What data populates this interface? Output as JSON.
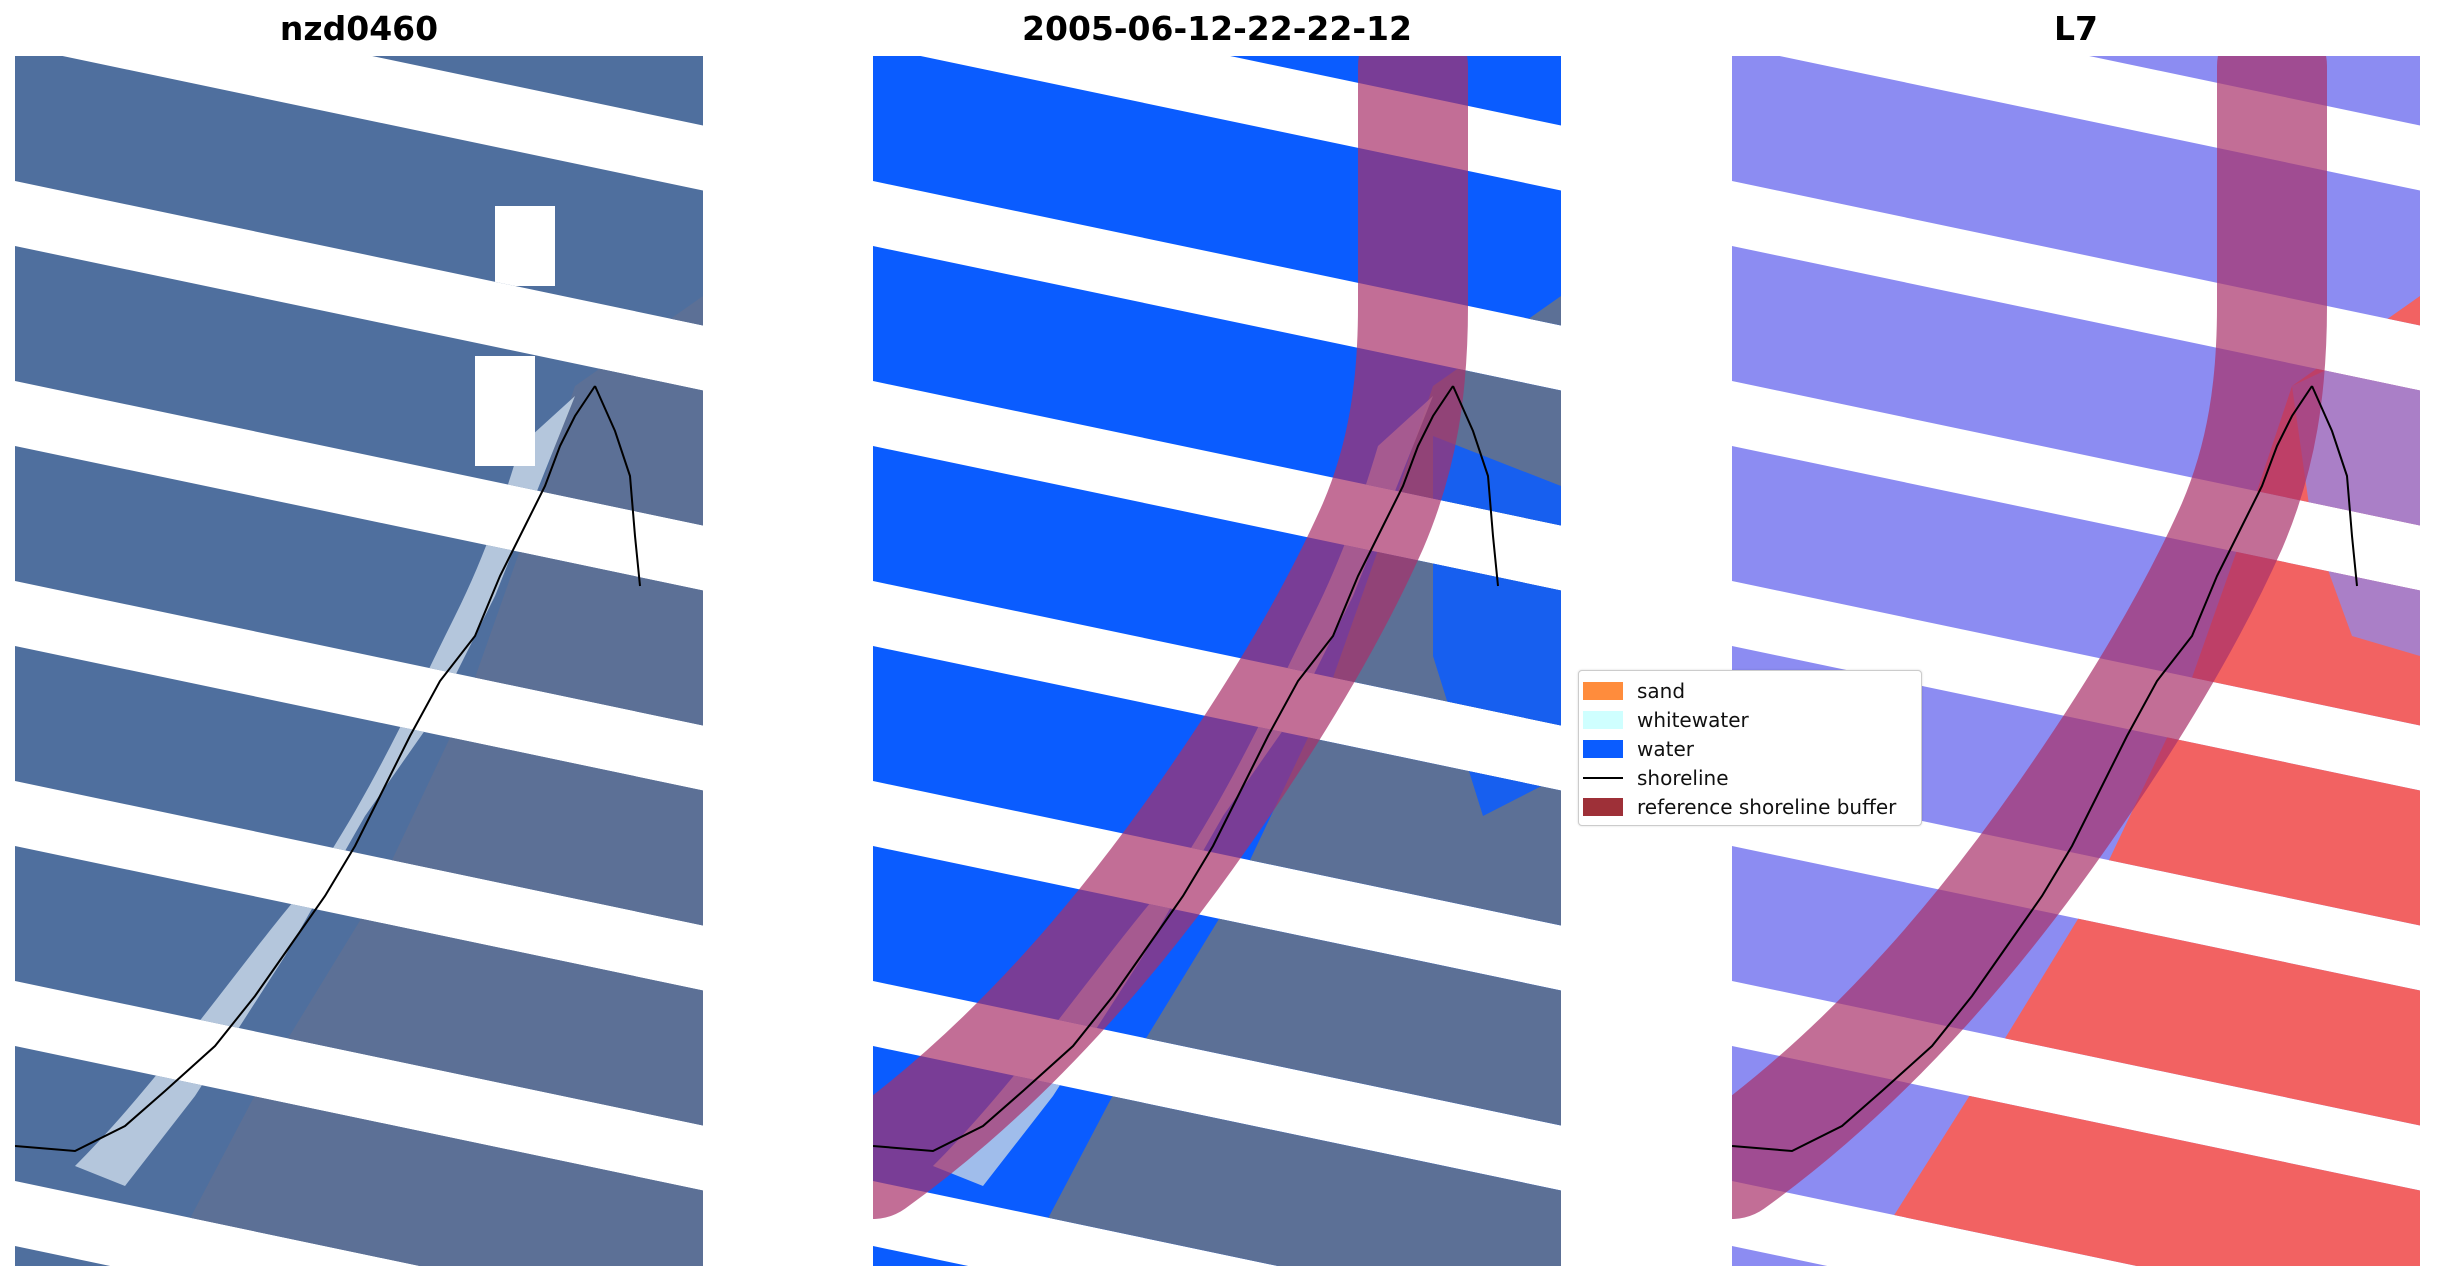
{
  "panels": [
    {
      "title": "nzd0460"
    },
    {
      "title": "2005-06-12-22-22-12"
    },
    {
      "title": "L7"
    }
  ],
  "legend": {
    "items": [
      {
        "label": "sand",
        "kind": "patch",
        "color": "#ff8c3c"
      },
      {
        "label": "whitewater",
        "kind": "patch",
        "color": "#cfffff"
      },
      {
        "label": "water",
        "kind": "patch",
        "color": "#0a5cff"
      },
      {
        "label": "shoreline",
        "kind": "line",
        "color": "#000000"
      },
      {
        "label": "reference shoreline buffer",
        "kind": "patch",
        "color": "#9e3038"
      }
    ]
  },
  "colors": {
    "rgb_water": "#4f6f9e",
    "rgb_land": "#5c7096",
    "rgb_surf": "#c6d6e6",
    "class_water": "#0a5cff",
    "buffer": "#a8306a",
    "index_blue": "#8c8cf2",
    "index_red": "#f26262",
    "nodata": "#ffffff"
  }
}
